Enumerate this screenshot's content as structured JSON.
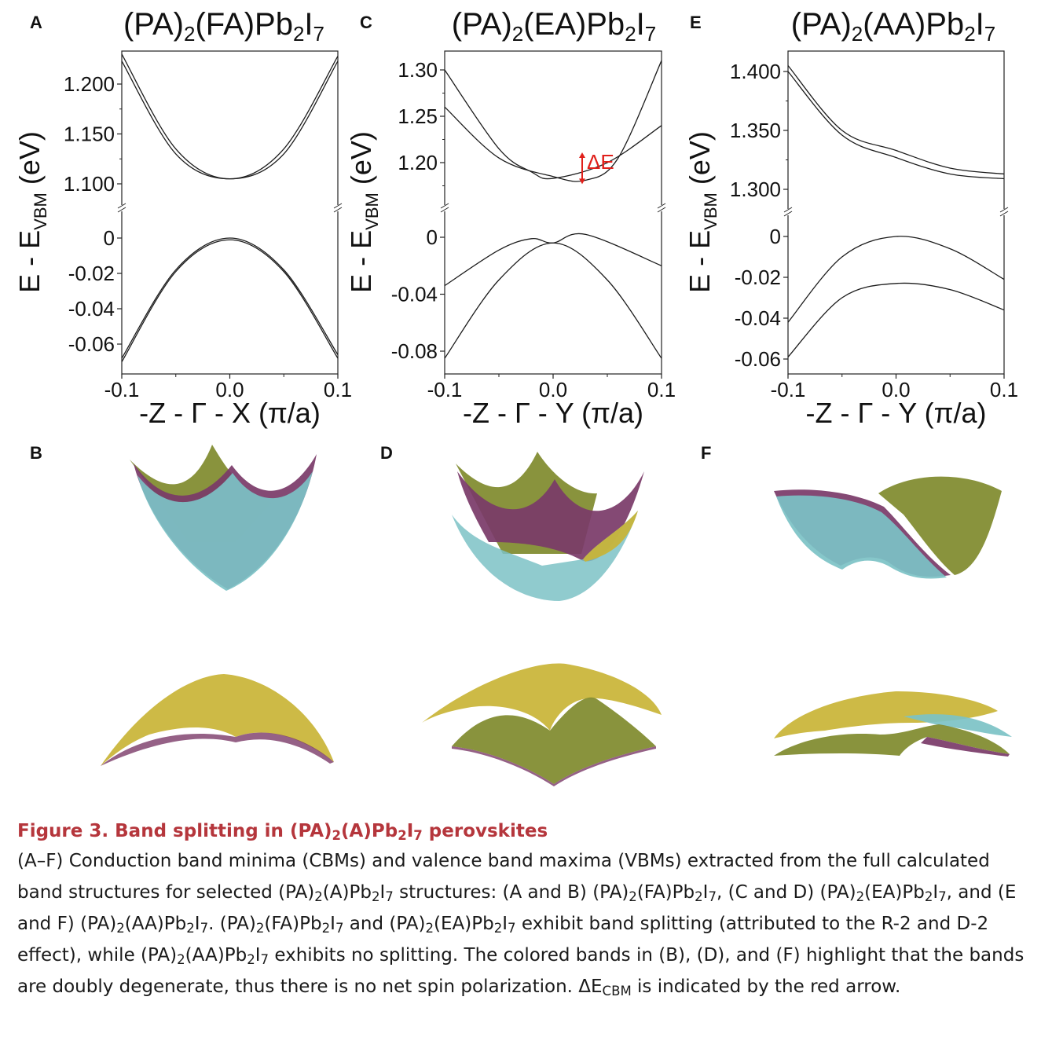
{
  "figure": {
    "panels_line": [
      {
        "letter": "A",
        "title": {
          "base": "(PA)",
          "sub1": "2",
          "mid": "(FA)Pb",
          "sub2": "2",
          "mid2": "I",
          "sub3": "7"
        },
        "ylabel": {
          "pre": "E - E",
          "sub": "VBM",
          "post": " (eV)"
        },
        "xlabel": "-Z - Γ - X (π/a)",
        "xticks": [
          "-0.1",
          "0.0",
          "0.1"
        ],
        "upper_ticks": [
          "1.200",
          "1.150",
          "1.100"
        ],
        "lower_ticks": [
          "0",
          "-0.02",
          "-0.04",
          "-0.06"
        ]
      },
      {
        "letter": "C",
        "title": {
          "base": "(PA)",
          "sub1": "2",
          "mid": "(EA)Pb",
          "sub2": "2",
          "mid2": "I",
          "sub3": "7"
        },
        "ylabel": {
          "pre": "E - E",
          "sub": "VBM",
          "post": " (eV)"
        },
        "xlabel": "-Z - Γ - Y (π/a)",
        "xticks": [
          "-0.1",
          "0.0",
          "0.1"
        ],
        "upper_ticks": [
          "1.30",
          "1.25",
          "1.20"
        ],
        "lower_ticks": [
          "0",
          "-0.04",
          "-0.08"
        ],
        "annotation": "ΔE",
        "annotation_color": "#e0201b"
      },
      {
        "letter": "E",
        "title": {
          "base": "(PA)",
          "sub1": "2",
          "mid": "(AA)Pb",
          "sub2": "2",
          "mid2": "I",
          "sub3": "7"
        },
        "ylabel": {
          "pre": "E - E",
          "sub": "VBM",
          "post": " (eV)"
        },
        "xlabel": "-Z - Γ - Y (π/a)",
        "xticks": [
          "-0.1",
          "0.0",
          "0.1"
        ],
        "upper_ticks": [
          "1.400",
          "1.350",
          "1.300"
        ],
        "lower_ticks": [
          "0",
          "-0.02",
          "-0.04",
          "-0.06"
        ]
      }
    ],
    "panels_surface": [
      {
        "letter": "B"
      },
      {
        "letter": "D"
      },
      {
        "letter": "F"
      }
    ],
    "surface_colors": {
      "olive": "#7f8a2c",
      "purple": "#7a3a68",
      "cyan": "#7cc2c6",
      "yellow": "#c9b436"
    }
  },
  "chart_data": [
    {
      "type": "line",
      "panel": "A",
      "title": "(PA)2(FA)Pb2I7",
      "xlabel": "-Z - Γ - X (π/a)",
      "ylabel": "E - EVBM (eV)",
      "xlim": [
        -0.1,
        0.1
      ],
      "broken_axis": true,
      "upper_ylim": [
        1.1,
        1.2
      ],
      "lower_ylim": [
        -0.07,
        0.0
      ],
      "series": [
        {
          "x": [
            -0.1,
            -0.05,
            0.0,
            0.05,
            0.1
          ],
          "y": [
            1.23,
            1.135,
            1.105,
            1.135,
            1.228
          ]
        },
        {
          "x": [
            -0.1,
            -0.05,
            0.0,
            0.05,
            0.1
          ],
          "y": [
            1.223,
            1.13,
            1.105,
            1.13,
            1.223
          ]
        },
        {
          "x": [
            -0.1,
            -0.05,
            0.0,
            0.05,
            0.1
          ],
          "y": [
            -0.068,
            -0.018,
            0.0,
            -0.018,
            -0.066
          ]
        },
        {
          "x": [
            -0.1,
            -0.05,
            0.0,
            0.05,
            0.1
          ],
          "y": [
            -0.07,
            -0.019,
            -0.001,
            -0.019,
            -0.068
          ]
        }
      ]
    },
    {
      "type": "line",
      "panel": "C",
      "title": "(PA)2(EA)Pb2I7",
      "xlabel": "-Z - Γ - Y (π/a)",
      "ylabel": "E - EVBM (eV)",
      "xlim": [
        -0.1,
        0.1
      ],
      "broken_axis": true,
      "upper_ylim": [
        1.2,
        1.3
      ],
      "lower_ylim": [
        -0.09,
        0.0
      ],
      "annotation": "ΔE",
      "series": [
        {
          "x": [
            -0.1,
            -0.05,
            -0.02,
            0.0,
            0.05,
            0.1
          ],
          "y": [
            1.3,
            1.215,
            1.19,
            1.183,
            1.2,
            1.24
          ]
        },
        {
          "x": [
            -0.1,
            -0.05,
            0.0,
            0.03,
            0.06,
            0.1
          ],
          "y": [
            1.26,
            1.205,
            1.185,
            1.181,
            1.205,
            1.31
          ]
        },
        {
          "x": [
            -0.1,
            -0.05,
            -0.02,
            0.0,
            0.03,
            0.1
          ],
          "y": [
            -0.034,
            -0.009,
            -0.001,
            -0.004,
            0.002,
            -0.02
          ]
        },
        {
          "x": [
            -0.1,
            -0.05,
            0.0,
            0.05,
            0.1
          ],
          "y": [
            -0.085,
            -0.03,
            -0.004,
            -0.03,
            -0.085
          ]
        }
      ]
    },
    {
      "type": "line",
      "panel": "E",
      "title": "(PA)2(AA)Pb2I7",
      "xlabel": "-Z - Γ - Y (π/a)",
      "ylabel": "E - EVBM (eV)",
      "xlim": [
        -0.1,
        0.1
      ],
      "broken_axis": true,
      "upper_ylim": [
        1.3,
        1.4
      ],
      "lower_ylim": [
        -0.06,
        0.0
      ],
      "series": [
        {
          "x": [
            -0.1,
            -0.05,
            0.0,
            0.05,
            0.1
          ],
          "y": [
            1.405,
            1.35,
            1.333,
            1.318,
            1.313
          ]
        },
        {
          "x": [
            -0.1,
            -0.05,
            0.0,
            0.05,
            0.1
          ],
          "y": [
            1.4,
            1.346,
            1.327,
            1.313,
            1.309
          ]
        },
        {
          "x": [
            -0.1,
            -0.05,
            0.0,
            0.05,
            0.1
          ],
          "y": [
            -0.042,
            -0.01,
            0.0,
            -0.006,
            -0.021
          ]
        },
        {
          "x": [
            -0.1,
            -0.05,
            0.0,
            0.05,
            0.1
          ],
          "y": [
            -0.059,
            -0.03,
            -0.023,
            -0.026,
            -0.036
          ]
        }
      ]
    }
  ],
  "caption": {
    "label": "Figure 3.",
    "title_parts": [
      {
        "t": "Band splitting in (PA)"
      },
      {
        "s": "2"
      },
      {
        "t": "(A)Pb"
      },
      {
        "s": "2"
      },
      {
        "t": "I"
      },
      {
        "s": "7"
      },
      {
        "t": " perovskites"
      }
    ],
    "body_parts": [
      {
        "t": "(A–F) Conduction band minima (CBMs) and valence band maxima (VBMs) extracted from the full calculated band structures for selected (PA)"
      },
      {
        "s": "2"
      },
      {
        "t": "(A)Pb"
      },
      {
        "s": "2"
      },
      {
        "t": "I"
      },
      {
        "s": "7"
      },
      {
        "t": " structures: (A and B) (PA)"
      },
      {
        "s": "2"
      },
      {
        "t": "(FA)Pb"
      },
      {
        "s": "2"
      },
      {
        "t": "I"
      },
      {
        "s": "7"
      },
      {
        "t": ", (C and D) (PA)"
      },
      {
        "s": "2"
      },
      {
        "t": "(EA)Pb"
      },
      {
        "s": "2"
      },
      {
        "t": "I"
      },
      {
        "s": "7"
      },
      {
        "t": ", and (E and F) (PA)"
      },
      {
        "s": "2"
      },
      {
        "t": "(AA)Pb"
      },
      {
        "s": "2"
      },
      {
        "t": "I"
      },
      {
        "s": "7"
      },
      {
        "t": ". (PA)"
      },
      {
        "s": "2"
      },
      {
        "t": "(FA)Pb"
      },
      {
        "s": "2"
      },
      {
        "t": "I"
      },
      {
        "s": "7"
      },
      {
        "t": " and (PA)"
      },
      {
        "s": "2"
      },
      {
        "t": "(EA)Pb"
      },
      {
        "s": "2"
      },
      {
        "t": "I"
      },
      {
        "s": "7"
      },
      {
        "t": " exhibit band splitting (attributed to the R-2 and D-2 effect), while (PA)"
      },
      {
        "s": "2"
      },
      {
        "t": "(AA)Pb"
      },
      {
        "s": "2"
      },
      {
        "t": "I"
      },
      {
        "s": "7"
      },
      {
        "t": " exhibits no splitting. The colored bands in (B), (D), and (F) highlight that the bands are doubly degenerate, thus there is no net spin polarization. ΔE"
      },
      {
        "s": "CBM"
      },
      {
        "t": " is indicated by the red arrow."
      }
    ]
  }
}
